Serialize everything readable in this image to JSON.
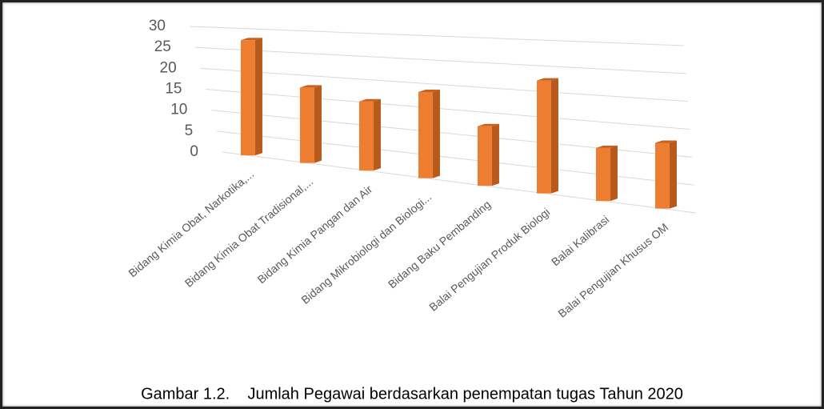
{
  "chart_data": {
    "type": "bar3d",
    "caption": "Gambar 1.2.    Jumlah Pegawai berdasarkan penempatan tugas Tahun 2020",
    "categories": [
      "Bidang Kimia Obat, Narkotika,...",
      "Bidang Kimia Obat Tradisional,...",
      "Bidang Kimia Pangan dan Air",
      "Bidang Mikrobiologi dan Biologi...",
      "Bidang Baku Pembanding",
      "Balai Pengujian Produk Biologi",
      "Balai Kalibrasi",
      "Balai Pengujian Khusus OM"
    ],
    "values": [
      27,
      17,
      15,
      18,
      12,
      22,
      10,
      12
    ],
    "color": "#ed7d31",
    "ylim": [
      0,
      30
    ],
    "yticks": [
      0,
      5,
      10,
      15,
      20,
      25,
      30
    ],
    "grid": true
  }
}
